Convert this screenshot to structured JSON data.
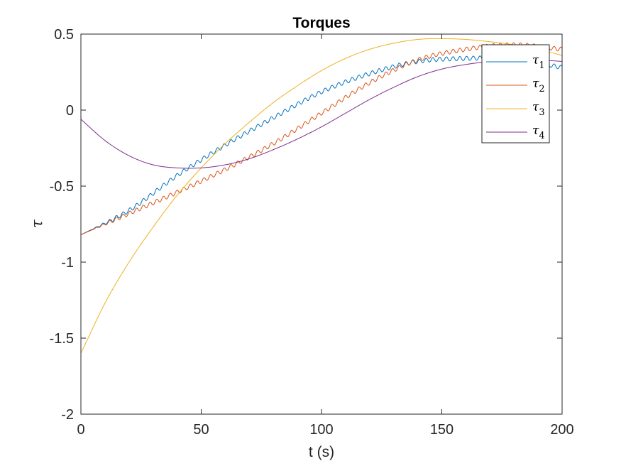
{
  "chart_data": {
    "type": "line",
    "title": "Torques",
    "xlabel": "t (s)",
    "ylabel": "τ",
    "xlim": [
      0,
      200
    ],
    "ylim": [
      -2,
      0.5
    ],
    "xticks": [
      0,
      50,
      100,
      150,
      200
    ],
    "xtick_labels": [
      "0",
      "50",
      "100",
      "150",
      "200"
    ],
    "yticks": [
      -2,
      -1.5,
      -1,
      -0.5,
      0,
      0.5
    ],
    "ytick_labels": [
      "-2",
      "-1.5",
      "-1",
      "-0.5",
      "0",
      "0.5"
    ],
    "grid": false,
    "legend_position": "top-right",
    "series": [
      {
        "name": "τ1",
        "symbol": "τ",
        "subscript": "1",
        "color": "#0072BD",
        "oscillation": {
          "amplitude": 0.014,
          "period": 2.8
        },
        "points": [
          [
            0,
            -0.82
          ],
          [
            20,
            -0.66
          ],
          [
            40,
            -0.43
          ],
          [
            60,
            -0.23
          ],
          [
            80,
            -0.05
          ],
          [
            100,
            0.12
          ],
          [
            120,
            0.24
          ],
          [
            140,
            0.32
          ],
          [
            160,
            0.34
          ],
          [
            175,
            0.34
          ],
          [
            190,
            0.31
          ],
          [
            200,
            0.28
          ]
        ]
      },
      {
        "name": "τ2",
        "symbol": "τ",
        "subscript": "2",
        "color": "#D95319",
        "oscillation": {
          "amplitude": 0.014,
          "period": 2.8
        },
        "points": [
          [
            0,
            -0.82
          ],
          [
            20,
            -0.68
          ],
          [
            40,
            -0.54
          ],
          [
            60,
            -0.39
          ],
          [
            80,
            -0.22
          ],
          [
            100,
            -0.02
          ],
          [
            120,
            0.18
          ],
          [
            140,
            0.33
          ],
          [
            160,
            0.4
          ],
          [
            180,
            0.43
          ],
          [
            200,
            0.4
          ]
        ]
      },
      {
        "name": "τ3",
        "symbol": "τ",
        "subscript": "3",
        "color": "#EDB120",
        "points": [
          [
            0,
            -1.6
          ],
          [
            10,
            -1.27
          ],
          [
            20,
            -1.0
          ],
          [
            30,
            -0.77
          ],
          [
            40,
            -0.56
          ],
          [
            50,
            -0.38
          ],
          [
            60,
            -0.22
          ],
          [
            70,
            -0.08
          ],
          [
            80,
            0.05
          ],
          [
            90,
            0.16
          ],
          [
            100,
            0.26
          ],
          [
            110,
            0.34
          ],
          [
            120,
            0.4
          ],
          [
            130,
            0.44
          ],
          [
            140,
            0.465
          ],
          [
            150,
            0.47
          ],
          [
            160,
            0.465
          ],
          [
            170,
            0.45
          ],
          [
            180,
            0.43
          ],
          [
            190,
            0.4
          ],
          [
            200,
            0.36
          ]
        ]
      },
      {
        "name": "τ4",
        "symbol": "τ",
        "subscript": "4",
        "color": "#7E2F8E",
        "points": [
          [
            0,
            -0.06
          ],
          [
            10,
            -0.2
          ],
          [
            20,
            -0.3
          ],
          [
            30,
            -0.36
          ],
          [
            40,
            -0.38
          ],
          [
            50,
            -0.38
          ],
          [
            60,
            -0.36
          ],
          [
            70,
            -0.32
          ],
          [
            80,
            -0.26
          ],
          [
            90,
            -0.19
          ],
          [
            100,
            -0.11
          ],
          [
            110,
            -0.02
          ],
          [
            120,
            0.07
          ],
          [
            130,
            0.15
          ],
          [
            140,
            0.22
          ],
          [
            150,
            0.27
          ],
          [
            160,
            0.3
          ],
          [
            170,
            0.32
          ],
          [
            180,
            0.33
          ],
          [
            190,
            0.33
          ],
          [
            200,
            0.32
          ]
        ]
      }
    ]
  }
}
